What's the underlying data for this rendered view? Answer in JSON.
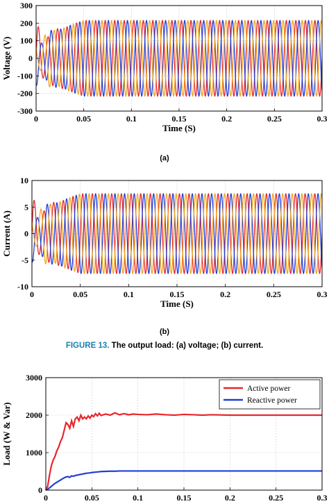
{
  "figure_caption": {
    "label": "FIGURE 13.",
    "text": "The output load: (a) voltage; (b) current."
  },
  "chart_data": [
    {
      "type": "line",
      "panel": "(a)",
      "xlabel": "Time (S)",
      "ylabel": "Voltage (V)",
      "xlim": [
        0,
        0.3
      ],
      "ylim": [
        -300,
        300
      ],
      "xticks": [
        0,
        0.05,
        0.1,
        0.15,
        0.2,
        0.25,
        0.3
      ],
      "xtick_labels": [
        "0",
        "0.05",
        "0.1",
        "0.15",
        "0.2",
        "0.25",
        "0.3"
      ],
      "yticks": [
        -300,
        -200,
        -100,
        0,
        100,
        200,
        300
      ],
      "ytick_labels": [
        "-300",
        "-200",
        "-100",
        "0",
        "100",
        "200",
        "300"
      ],
      "steady_amplitude": 215,
      "frequency_hz": 100,
      "settling_time": 0.05,
      "grid": "dashed",
      "series": [
        {
          "phase_deg": 0,
          "color": "#e8262a"
        },
        {
          "phase_deg": -120,
          "color": "#1f3fd6"
        },
        {
          "phase_deg": 120,
          "color": "#efa720"
        }
      ]
    },
    {
      "type": "line",
      "panel": "(b)",
      "xlabel": "Time (S)",
      "ylabel": "Current (A)",
      "xlim": [
        0,
        0.3
      ],
      "ylim": [
        -10,
        10
      ],
      "xticks": [
        0,
        0.05,
        0.1,
        0.15,
        0.2,
        0.25,
        0.3
      ],
      "xtick_labels": [
        "0",
        "0.05",
        "0.1",
        "0.15",
        "0.2",
        "0.25",
        "0.3"
      ],
      "yticks": [
        -10,
        -5,
        0,
        5,
        10
      ],
      "ytick_labels": [
        "-10",
        "-5",
        "0",
        "5",
        "10"
      ],
      "steady_amplitude": 7.5,
      "frequency_hz": 100,
      "settling_time": 0.05,
      "grid": "dashed",
      "series": [
        {
          "phase_deg": 0,
          "color": "#e8262a"
        },
        {
          "phase_deg": -120,
          "color": "#1f3fd6"
        },
        {
          "phase_deg": 120,
          "color": "#efa720"
        }
      ]
    },
    {
      "type": "line",
      "panel": "",
      "xlabel": "Time (S)",
      "ylabel": "Load (W & Var)",
      "xlim": [
        0,
        0.3
      ],
      "ylim": [
        0,
        3000
      ],
      "xticks": [
        0,
        0.05,
        0.1,
        0.15,
        0.2,
        0.25,
        0.3
      ],
      "xtick_labels": [
        "0",
        "0.05",
        "0.1",
        "0.15",
        "0.2",
        "0.25",
        "0.3"
      ],
      "yticks": [
        0,
        1000,
        2000,
        3000
      ],
      "ytick_labels": [
        "0",
        "1000",
        "2000",
        "3000"
      ],
      "grid": "dashed",
      "legend_position": "top-right",
      "x": [
        0,
        0.002,
        0.004,
        0.006,
        0.008,
        0.01,
        0.012,
        0.014,
        0.016,
        0.018,
        0.02,
        0.022,
        0.024,
        0.026,
        0.028,
        0.03,
        0.032,
        0.034,
        0.036,
        0.038,
        0.04,
        0.042,
        0.044,
        0.046,
        0.048,
        0.05,
        0.052,
        0.054,
        0.056,
        0.058,
        0.06,
        0.065,
        0.07,
        0.075,
        0.08,
        0.085,
        0.09,
        0.095,
        0.1,
        0.11,
        0.12,
        0.13,
        0.14,
        0.15,
        0.16,
        0.17,
        0.18,
        0.2,
        0.25,
        0.3
      ],
      "series": [
        {
          "name": "Active power",
          "color": "#e8262a",
          "values": [
            0,
            100,
            400,
            650,
            800,
            900,
            1050,
            1150,
            1300,
            1400,
            1600,
            1800,
            1750,
            1650,
            1850,
            1700,
            1900,
            1950,
            1850,
            2000,
            1900,
            1950,
            1900,
            1980,
            1920,
            2000,
            1960,
            2040,
            1980,
            2050,
            1990,
            2030,
            2000,
            2060,
            2010,
            2040,
            2010,
            2030,
            2020,
            2010,
            2030,
            2010,
            2000,
            2020,
            2010,
            2000,
            2010,
            2000,
            2000,
            2000
          ]
        },
        {
          "name": "Reactive power",
          "color": "#1f3fd6",
          "values": [
            0,
            20,
            60,
            100,
            140,
            180,
            210,
            240,
            270,
            300,
            330,
            350,
            360,
            340,
            380,
            370,
            390,
            400,
            410,
            420,
            430,
            440,
            450,
            455,
            460,
            470,
            475,
            480,
            485,
            490,
            495,
            500,
            505,
            505,
            510,
            510,
            510,
            510,
            510,
            510,
            510,
            510,
            510,
            510,
            510,
            510,
            510,
            510,
            510,
            510
          ]
        }
      ]
    }
  ]
}
